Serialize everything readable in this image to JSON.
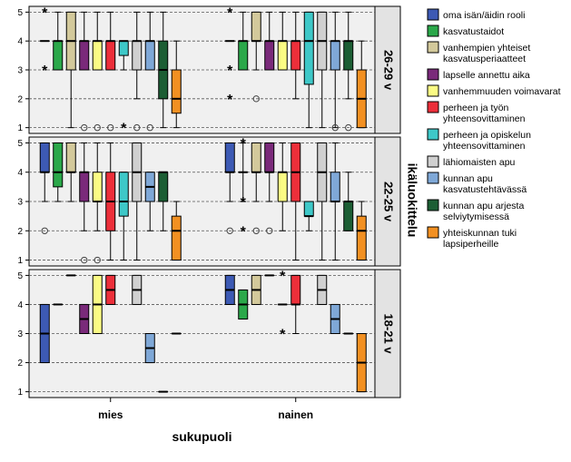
{
  "chart_data": {
    "type": "boxplot",
    "xlabel": "sukupuoli",
    "facet_label": "ikäluokittelu",
    "groups": [
      "mies",
      "nainen"
    ],
    "y_ticks": [
      1,
      2,
      3,
      4,
      5
    ],
    "ylim": [
      0.8,
      5.2
    ],
    "grid": "dashed horizontal at integer values",
    "legend_position": "right",
    "series": [
      {
        "name": "oma isän/äidin rooli",
        "color": "#3d5ab4"
      },
      {
        "name": "kasvatustaidot",
        "color": "#2ba84a"
      },
      {
        "name": "vanhempien yhteiset kasvatusperiaatteet",
        "color": "#d3c99b"
      },
      {
        "name": "lapselle annettu aika",
        "color": "#7a2a7a"
      },
      {
        "name": "vanhemmuuden voimavarat",
        "color": "#fbfb84"
      },
      {
        "name": "perheen ja työn yhteensovittaminen",
        "color": "#ec2f3a"
      },
      {
        "name": "perheen ja opiskelun yhteensovittaminen",
        "color": "#3ec8c8"
      },
      {
        "name": "lähiomaisten apu",
        "color": "#d0d0d0"
      },
      {
        "name": "kunnan apu kasvatustehtävässä",
        "color": "#7fa8d7"
      },
      {
        "name": "kunnan apu arjesta selviytymisessä",
        "color": "#1c5e34"
      },
      {
        "name": "yhteiskunnan tuki lapsiperheille",
        "color": "#f29022"
      }
    ],
    "panels": [
      {
        "label": "26-29 v",
        "boxes": {
          "mies": [
            {
              "q1": 4,
              "med": 4,
              "q3": 4,
              "wlo": 4,
              "whi": 4,
              "out": [
                {
                  "v": 5,
                  "m": "*"
                },
                {
                  "v": 3,
                  "m": "*"
                }
              ]
            },
            {
              "q1": 3,
              "med": 4,
              "q3": 4,
              "wlo": 3,
              "whi": 5,
              "out": []
            },
            {
              "q1": 3,
              "med": 4,
              "q3": 5,
              "wlo": 1,
              "whi": 5,
              "out": []
            },
            {
              "q1": 3,
              "med": 4,
              "q3": 4,
              "wlo": 3,
              "whi": 5,
              "out": [
                {
                  "v": 1,
                  "m": "o"
                }
              ]
            },
            {
              "q1": 3,
              "med": 4,
              "q3": 4,
              "wlo": 3,
              "whi": 5,
              "out": [
                {
                  "v": 1,
                  "m": "o"
                }
              ]
            },
            {
              "q1": 3,
              "med": 4,
              "q3": 4,
              "wlo": 3,
              "whi": 5,
              "out": [
                {
                  "v": 1,
                  "m": "o"
                }
              ]
            },
            {
              "q1": 3.5,
              "med": 4,
              "q3": 4,
              "wlo": 3,
              "whi": 4,
              "out": [
                {
                  "v": 1,
                  "m": "*"
                }
              ]
            },
            {
              "q1": 3,
              "med": 4,
              "q3": 4,
              "wlo": 2,
              "whi": 5,
              "out": [
                {
                  "v": 1,
                  "m": "o"
                }
              ]
            },
            {
              "q1": 3,
              "med": 4,
              "q3": 4,
              "wlo": 3,
              "whi": 5,
              "out": [
                {
                  "v": 1,
                  "m": "o"
                }
              ]
            },
            {
              "q1": 2,
              "med": 3,
              "q3": 4,
              "wlo": 1,
              "whi": 5,
              "out": []
            },
            {
              "q1": 1.5,
              "med": 2,
              "q3": 3,
              "wlo": 1,
              "whi": 4,
              "out": []
            }
          ],
          "nainen": [
            {
              "q1": 4,
              "med": 4,
              "q3": 4,
              "wlo": 4,
              "whi": 4,
              "out": [
                {
                  "v": 5,
                  "m": "*"
                },
                {
                  "v": 3,
                  "m": "*"
                },
                {
                  "v": 2,
                  "m": "*"
                }
              ]
            },
            {
              "q1": 3,
              "med": 4,
              "q3": 4,
              "wlo": 3,
              "whi": 5,
              "out": []
            },
            {
              "q1": 4,
              "med": 4,
              "q3": 5,
              "wlo": 3,
              "whi": 5,
              "out": [
                {
                  "v": 2,
                  "m": "o"
                }
              ]
            },
            {
              "q1": 3,
              "med": 4,
              "q3": 4,
              "wlo": 3,
              "whi": 5,
              "out": []
            },
            {
              "q1": 3,
              "med": 4,
              "q3": 4,
              "wlo": 3,
              "whi": 5,
              "out": []
            },
            {
              "q1": 3,
              "med": 4,
              "q3": 4,
              "wlo": 2,
              "whi": 5,
              "out": []
            },
            {
              "q1": 2.5,
              "med": 4,
              "q3": 5,
              "wlo": 1,
              "whi": 5,
              "out": []
            },
            {
              "q1": 3,
              "med": 4,
              "q3": 5,
              "wlo": 1,
              "whi": 5,
              "out": []
            },
            {
              "q1": 3,
              "med": 4,
              "q3": 4,
              "wlo": 1,
              "whi": 5,
              "out": [
                {
                  "v": 1,
                  "m": "o"
                }
              ]
            },
            {
              "q1": 3,
              "med": 4,
              "q3": 4,
              "wlo": 2,
              "whi": 5,
              "out": [
                {
                  "v": 1,
                  "m": "o"
                }
              ]
            },
            {
              "q1": 1,
              "med": 2,
              "q3": 3,
              "wlo": 1,
              "whi": 4,
              "out": []
            }
          ]
        }
      },
      {
        "label": "22-25 v",
        "boxes": {
          "mies": [
            {
              "q1": 4,
              "med": 4,
              "q3": 5,
              "wlo": 3,
              "whi": 5,
              "out": [
                {
                  "v": 2,
                  "m": "o"
                }
              ]
            },
            {
              "q1": 3.5,
              "med": 4,
              "q3": 5,
              "wlo": 3,
              "whi": 5,
              "out": []
            },
            {
              "q1": 4,
              "med": 4,
              "q3": 5,
              "wlo": 3,
              "whi": 5,
              "out": []
            },
            {
              "q1": 3,
              "med": 4,
              "q3": 4,
              "wlo": 2,
              "whi": 5,
              "out": [
                {
                  "v": 1,
                  "m": "o"
                }
              ]
            },
            {
              "q1": 3,
              "med": 3,
              "q3": 4,
              "wlo": 2,
              "whi": 5,
              "out": [
                {
                  "v": 1,
                  "m": "o"
                }
              ]
            },
            {
              "q1": 2,
              "med": 3,
              "q3": 4,
              "wlo": 1,
              "whi": 5,
              "out": []
            },
            {
              "q1": 2.5,
              "med": 3,
              "q3": 4,
              "wlo": 1,
              "whi": 4,
              "out": []
            },
            {
              "q1": 3,
              "med": 4,
              "q3": 5,
              "wlo": 1,
              "whi": 5,
              "out": []
            },
            {
              "q1": 3,
              "med": 3.5,
              "q3": 4,
              "wlo": 2,
              "whi": 4,
              "out": []
            },
            {
              "q1": 3,
              "med": 4,
              "q3": 4,
              "wlo": 2,
              "whi": 4,
              "out": []
            },
            {
              "q1": 1,
              "med": 2,
              "q3": 2.5,
              "wlo": 1,
              "whi": 3,
              "out": []
            }
          ],
          "nainen": [
            {
              "q1": 4,
              "med": 4,
              "q3": 5,
              "wlo": 3,
              "whi": 5,
              "out": [
                {
                  "v": 2,
                  "m": "o"
                }
              ]
            },
            {
              "q1": 4,
              "med": 4,
              "q3": 4,
              "wlo": 3,
              "whi": 5,
              "out": [
                {
                  "v": 5,
                  "m": "*"
                },
                {
                  "v": 3,
                  "m": "*"
                },
                {
                  "v": 2,
                  "m": "*"
                }
              ]
            },
            {
              "q1": 4,
              "med": 4,
              "q3": 5,
              "wlo": 3,
              "whi": 5,
              "out": [
                {
                  "v": 2,
                  "m": "o"
                }
              ]
            },
            {
              "q1": 4,
              "med": 4,
              "q3": 5,
              "wlo": 3,
              "whi": 5,
              "out": [
                {
                  "v": 2,
                  "m": "o"
                }
              ]
            },
            {
              "q1": 3,
              "med": 4,
              "q3": 4,
              "wlo": 2,
              "whi": 5,
              "out": []
            },
            {
              "q1": 3,
              "med": 4,
              "q3": 5,
              "wlo": 1,
              "whi": 5,
              "out": []
            },
            {
              "q1": 2.5,
              "med": 2.5,
              "q3": 3,
              "wlo": 2,
              "whi": 3,
              "out": []
            },
            {
              "q1": 3,
              "med": 4,
              "q3": 5,
              "wlo": 1,
              "whi": 5,
              "out": []
            },
            {
              "q1": 3,
              "med": 3,
              "q3": 4,
              "wlo": 1,
              "whi": 5,
              "out": []
            },
            {
              "q1": 2,
              "med": 3,
              "q3": 3,
              "wlo": 2,
              "whi": 4,
              "out": []
            },
            {
              "q1": 1,
              "med": 2,
              "q3": 2.5,
              "wlo": 1,
              "whi": 3,
              "out": []
            }
          ]
        }
      },
      {
        "label": "18-21 v",
        "boxes": {
          "mies": [
            {
              "q1": 2,
              "med": 3,
              "q3": 4,
              "wlo": 2,
              "whi": 4,
              "out": []
            },
            {
              "q1": 4,
              "med": 4,
              "q3": 4,
              "wlo": 4,
              "whi": 4,
              "out": []
            },
            {
              "q1": 5,
              "med": 5,
              "q3": 5,
              "wlo": 5,
              "whi": 5,
              "out": []
            },
            {
              "q1": 3,
              "med": 3.5,
              "q3": 4,
              "wlo": 3,
              "whi": 4,
              "out": []
            },
            {
              "q1": 3,
              "med": 4,
              "q3": 5,
              "wlo": 3,
              "whi": 5,
              "out": []
            },
            {
              "q1": 4,
              "med": 4.5,
              "q3": 5,
              "wlo": 4,
              "whi": 5,
              "out": []
            },
            null,
            {
              "q1": 4,
              "med": 4.5,
              "q3": 5,
              "wlo": 4,
              "whi": 5,
              "out": []
            },
            {
              "q1": 2,
              "med": 2.5,
              "q3": 3,
              "wlo": 2,
              "whi": 3,
              "out": []
            },
            {
              "q1": 1,
              "med": 1,
              "q3": 1,
              "wlo": 1,
              "whi": 1,
              "out": []
            },
            {
              "q1": 3,
              "med": 3,
              "q3": 3,
              "wlo": 3,
              "whi": 3,
              "out": []
            }
          ],
          "nainen": [
            {
              "q1": 4,
              "med": 4.5,
              "q3": 5,
              "wlo": 4,
              "whi": 5,
              "out": []
            },
            {
              "q1": 3.5,
              "med": 4,
              "q3": 4.5,
              "wlo": 3.5,
              "whi": 4.5,
              "out": []
            },
            {
              "q1": 4,
              "med": 4.5,
              "q3": 5,
              "wlo": 4,
              "whi": 5,
              "out": []
            },
            {
              "q1": 5,
              "med": 5,
              "q3": 5,
              "wlo": 5,
              "whi": 5,
              "out": []
            },
            {
              "q1": 4,
              "med": 4,
              "q3": 4,
              "wlo": 4,
              "whi": 4,
              "out": [
                {
                  "v": 5,
                  "m": "*"
                },
                {
                  "v": 3,
                  "m": "*"
                }
              ]
            },
            {
              "q1": 4,
              "med": 4,
              "q3": 5,
              "wlo": 3,
              "whi": 5,
              "out": []
            },
            null,
            {
              "q1": 4,
              "med": 4.5,
              "q3": 5,
              "wlo": 4,
              "whi": 5,
              "out": []
            },
            {
              "q1": 3,
              "med": 3.5,
              "q3": 4,
              "wlo": 3,
              "whi": 4,
              "out": []
            },
            {
              "q1": 3,
              "med": 3,
              "q3": 3,
              "wlo": 3,
              "whi": 3,
              "out": []
            },
            {
              "q1": 1,
              "med": 2,
              "q3": 3,
              "wlo": 1,
              "whi": 3,
              "out": []
            }
          ]
        }
      }
    ]
  }
}
